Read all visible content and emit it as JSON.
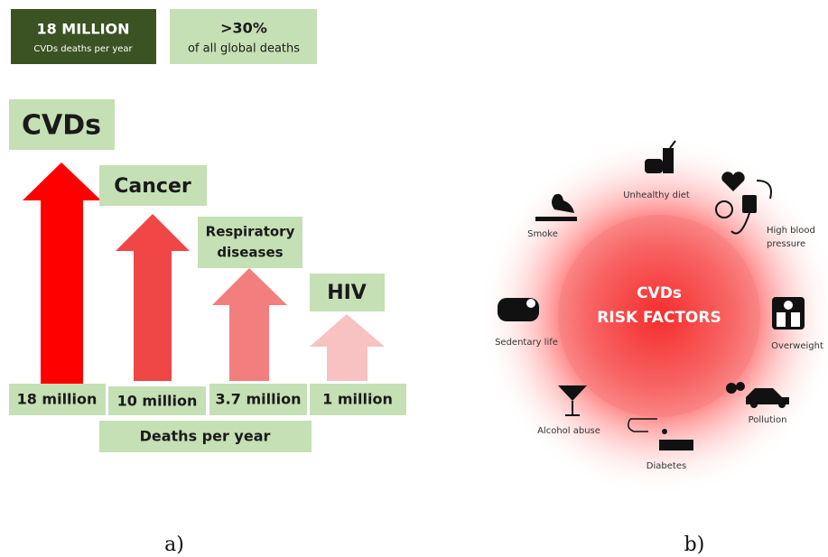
{
  "stats": [
    {
      "value": "18 MILLION",
      "caption": "CVDs deaths per year"
    },
    {
      "value": ">30%",
      "caption": "of all global deaths"
    }
  ],
  "causes": [
    {
      "label": [
        "CVDs"
      ],
      "deaths": "18 million"
    },
    {
      "label": [
        "Cancer"
      ],
      "deaths": "10 million"
    },
    {
      "label": [
        "Respiratory",
        "diseases"
      ],
      "deaths": "3.7 million"
    },
    {
      "label": [
        "HIV"
      ],
      "deaths": "1 million"
    }
  ],
  "axis_label": "Deaths per year",
  "panel_labels": [
    "a)",
    "b)"
  ],
  "risk_factors": {
    "center": [
      "CVDs",
      "RISK FACTORS"
    ],
    "items": [
      {
        "label": [
          "Unhealthy diet"
        ]
      },
      {
        "label": [
          "High blood",
          "pressure"
        ]
      },
      {
        "label": [
          "Smoke"
        ]
      },
      {
        "label": [
          "Sedentary life"
        ]
      },
      {
        "label": [
          "Overweight"
        ]
      },
      {
        "label": [
          "Alcohol abuse"
        ]
      },
      {
        "label": [
          "Pollution"
        ]
      },
      {
        "label": [
          "Diabetes"
        ]
      }
    ]
  }
}
